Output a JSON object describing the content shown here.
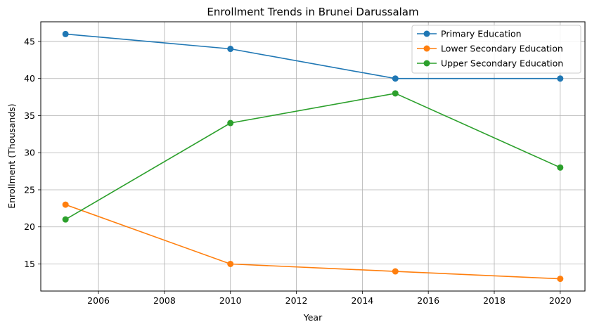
{
  "chart_data": {
    "type": "line",
    "title": "Enrollment Trends in Brunei Darussalam",
    "xlabel": "Year",
    "ylabel": "Enrollment (Thousands)",
    "x": [
      2005,
      2010,
      2015,
      2020
    ],
    "xlim": [
      2004.25,
      2020.75
    ],
    "ylim": [
      11.35,
      47.65
    ],
    "xticks": [
      2006,
      2008,
      2010,
      2012,
      2014,
      2016,
      2018,
      2020
    ],
    "yticks": [
      15,
      20,
      25,
      30,
      35,
      40,
      45
    ],
    "grid": true,
    "legend_position": "top-right",
    "series": [
      {
        "name": "Primary Education",
        "color": "#1f77b4",
        "values": [
          46,
          44,
          40,
          40
        ]
      },
      {
        "name": "Lower Secondary Education",
        "color": "#ff7f0e",
        "values": [
          23,
          15,
          14,
          13
        ]
      },
      {
        "name": "Upper Secondary Education",
        "color": "#2ca02c",
        "values": [
          21,
          34,
          38,
          28
        ]
      }
    ]
  }
}
